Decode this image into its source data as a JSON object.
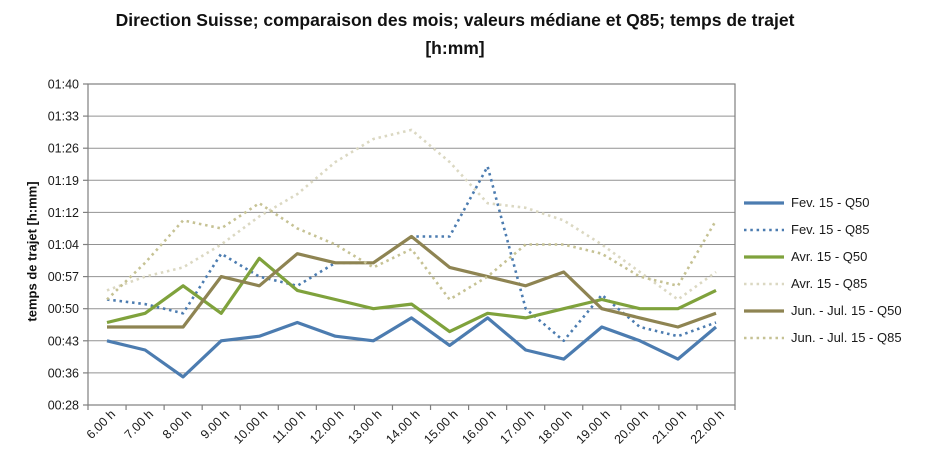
{
  "title": "Direction Suisse; comparaison des mois; valeurs médiane et Q85; temps de trajet [h:mm]",
  "y_axis_title": "temps de trajet [h:mm]",
  "colors": {
    "fev_blue": "#4C7CB0",
    "avr_green": "#7FA23C",
    "junjul_olive": "#8E8452",
    "avr_q85_beige": "#DBD8C2",
    "junjul_q85_khaki": "#C6C294",
    "gridline": "#929292",
    "axis_border": "#7F7F7F"
  },
  "chart_data": {
    "type": "line",
    "grid": true,
    "legend_position": "right",
    "unit": "minutes of travel time",
    "x_categories": [
      "6.00 h",
      "7.00 h",
      "8.00 h",
      "9.00 h",
      "10.00 h",
      "11.00 h",
      "12.00 h",
      "13.00 h",
      "14.00 h",
      "15.00 h",
      "16.00 h",
      "17.00 h",
      "18.00 h",
      "19.00 h",
      "20.00 h",
      "21.00 h",
      "22.00 h"
    ],
    "y_ticks": [
      "01:40",
      "01:33",
      "01:26",
      "01:19",
      "01:12",
      "01:04",
      "00:57",
      "00:50",
      "00:43",
      "00:36",
      "00:28"
    ],
    "y_tick_minutes": [
      100,
      93,
      86,
      79,
      72,
      64,
      57,
      50,
      43,
      36,
      28
    ],
    "series": [
      {
        "name": "Fev. 15 - Q50",
        "style": "solid",
        "color": "#4C7CB0",
        "values_min": [
          43,
          41,
          35,
          43,
          44,
          47,
          44,
          43,
          48,
          42,
          48,
          41,
          39,
          46,
          43,
          39,
          46
        ],
        "values_hmm": [
          "0:43",
          "0:41",
          "0:35",
          "0:43",
          "0:44",
          "0:47",
          "0:44",
          "0:43",
          "0:48",
          "0:42",
          "0:48",
          "0:41",
          "0:39",
          "0:46",
          "0:43",
          "0:39",
          "0:46"
        ]
      },
      {
        "name": "Fev. 15 - Q85",
        "style": "dotted",
        "color": "#4C7CB0",
        "values_min": [
          52,
          51,
          49,
          62,
          57,
          55,
          60,
          60,
          66,
          66,
          82,
          50,
          43,
          53,
          46,
          44,
          47
        ],
        "values_hmm": [
          "0:52",
          "0:51",
          "0:49",
          "1:02",
          "0:57",
          "0:55",
          "1:00",
          "1:00",
          "1:06",
          "1:06",
          "1:22",
          "0:50",
          "0:43",
          "0:53",
          "0:46",
          "0:44",
          "0:47"
        ]
      },
      {
        "name": "Avr. 15 - Q50",
        "style": "solid",
        "color": "#7FA23C",
        "values_min": [
          47,
          49,
          55,
          49,
          61,
          54,
          52,
          50,
          51,
          45,
          49,
          48,
          50,
          52,
          50,
          50,
          54
        ],
        "values_hmm": [
          "0:47",
          "0:49",
          "0:55",
          "0:49",
          "1:01",
          "0:54",
          "0:52",
          "0:50",
          "0:51",
          "0:45",
          "0:49",
          "0:48",
          "0:50",
          "0:52",
          "0:50",
          "0:50",
          "0:54"
        ]
      },
      {
        "name": "Avr. 15 - Q85",
        "style": "dotted",
        "color": "#DBD8C2",
        "values_min": [
          54,
          57,
          59,
          64,
          71,
          76,
          83,
          88,
          90,
          83,
          74,
          73,
          70,
          64,
          58,
          52,
          58
        ],
        "values_hmm": [
          "0:54",
          "0:57",
          "0:59",
          "1:04",
          "1:11",
          "1:16",
          "1:23",
          "1:28",
          "1:30",
          "1:23",
          "1:14",
          "1:13",
          "1:10",
          "1:04",
          "0:58",
          "0:52",
          "0:58"
        ]
      },
      {
        "name": "Jun. - Jul. 15 - Q50",
        "style": "solid",
        "color": "#8E8452",
        "values_min": [
          46,
          46,
          46,
          57,
          55,
          62,
          60,
          60,
          66,
          59,
          57,
          55,
          58,
          50,
          48,
          46,
          49
        ],
        "values_hmm": [
          "0:46",
          "0:46",
          "0:46",
          "0:57",
          "0:55",
          "1:02",
          "1:00",
          "1:00",
          "1:06",
          "0:59",
          "0:57",
          "0:55",
          "0:58",
          "0:50",
          "0:48",
          "0:46",
          "0:49"
        ]
      },
      {
        "name": "Jun. - Jul. 15 - Q85",
        "style": "dotted",
        "color": "#C6C294",
        "values_min": [
          52,
          60,
          70,
          68,
          74,
          68,
          64,
          59,
          63,
          52,
          57,
          64,
          64,
          62,
          57,
          55,
          70
        ],
        "values_hmm": [
          "0:52",
          "1:00",
          "1:10",
          "1:08",
          "1:14",
          "1:08",
          "1:04",
          "0:59",
          "1:03",
          "0:52",
          "0:57",
          "1:04",
          "1:04",
          "1:02",
          "0:57",
          "0:55",
          "1:10"
        ]
      }
    ]
  }
}
